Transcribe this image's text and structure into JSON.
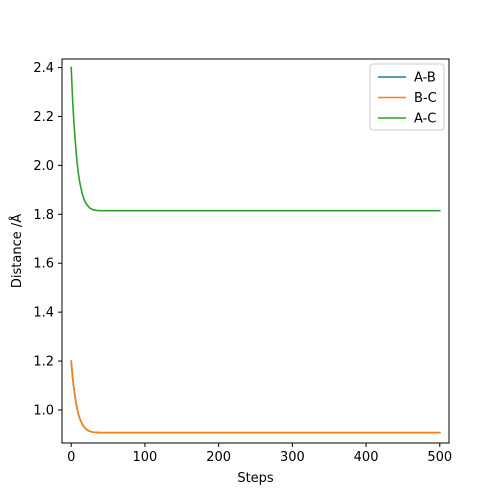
{
  "chart_data": {
    "type": "line",
    "title": "",
    "xlabel": "Steps",
    "ylabel": "Distance /Å",
    "xlim": [
      -12.5,
      512.5
    ],
    "ylim": [
      0.865,
      2.435
    ],
    "xticks": [
      0,
      100,
      200,
      300,
      400,
      500
    ],
    "xtick_labels": [
      "0",
      "100",
      "200",
      "300",
      "400",
      "500"
    ],
    "yticks": [
      1.0,
      1.2,
      1.4,
      1.6,
      1.8,
      2.0,
      2.2,
      2.4
    ],
    "ytick_labels": [
      "1.0",
      "1.2",
      "1.4",
      "1.6",
      "1.8",
      "2.0",
      "2.2",
      "2.4"
    ],
    "grid": false,
    "legend_position": "top-right",
    "series": [
      {
        "name": "A-B",
        "color": "#1f77b4",
        "x": [
          0,
          2,
          4,
          6,
          8,
          10,
          12,
          15,
          18,
          21,
          25,
          30,
          35,
          40,
          50,
          60,
          80,
          100,
          150,
          200,
          300,
          400,
          500
        ],
        "y": [
          1.2,
          1.13,
          1.08,
          1.04,
          1.005,
          0.98,
          0.962,
          0.942,
          0.928,
          0.92,
          0.913,
          0.909,
          0.908,
          0.907,
          0.907,
          0.907,
          0.907,
          0.907,
          0.907,
          0.907,
          0.907,
          0.907,
          0.907
        ]
      },
      {
        "name": "B-C",
        "color": "#ff7f0e",
        "x": [
          0,
          2,
          4,
          6,
          8,
          10,
          12,
          15,
          18,
          21,
          25,
          30,
          35,
          40,
          50,
          60,
          80,
          100,
          150,
          200,
          300,
          400,
          500
        ],
        "y": [
          1.2,
          1.13,
          1.08,
          1.04,
          1.005,
          0.98,
          0.962,
          0.942,
          0.928,
          0.92,
          0.913,
          0.909,
          0.908,
          0.907,
          0.907,
          0.907,
          0.907,
          0.907,
          0.907,
          0.907,
          0.907,
          0.907,
          0.907
        ]
      },
      {
        "name": "A-C",
        "color": "#2ca02c",
        "x": [
          0,
          2,
          4,
          6,
          8,
          10,
          12,
          15,
          18,
          21,
          25,
          30,
          35,
          40,
          50,
          60,
          80,
          100,
          150,
          200,
          300,
          400,
          500
        ],
        "y": [
          2.4,
          2.26,
          2.16,
          2.08,
          2.01,
          1.96,
          1.924,
          1.884,
          1.856,
          1.84,
          1.826,
          1.818,
          1.816,
          1.815,
          1.815,
          1.815,
          1.815,
          1.815,
          1.815,
          1.815,
          1.815,
          1.815,
          1.815
        ]
      }
    ]
  }
}
